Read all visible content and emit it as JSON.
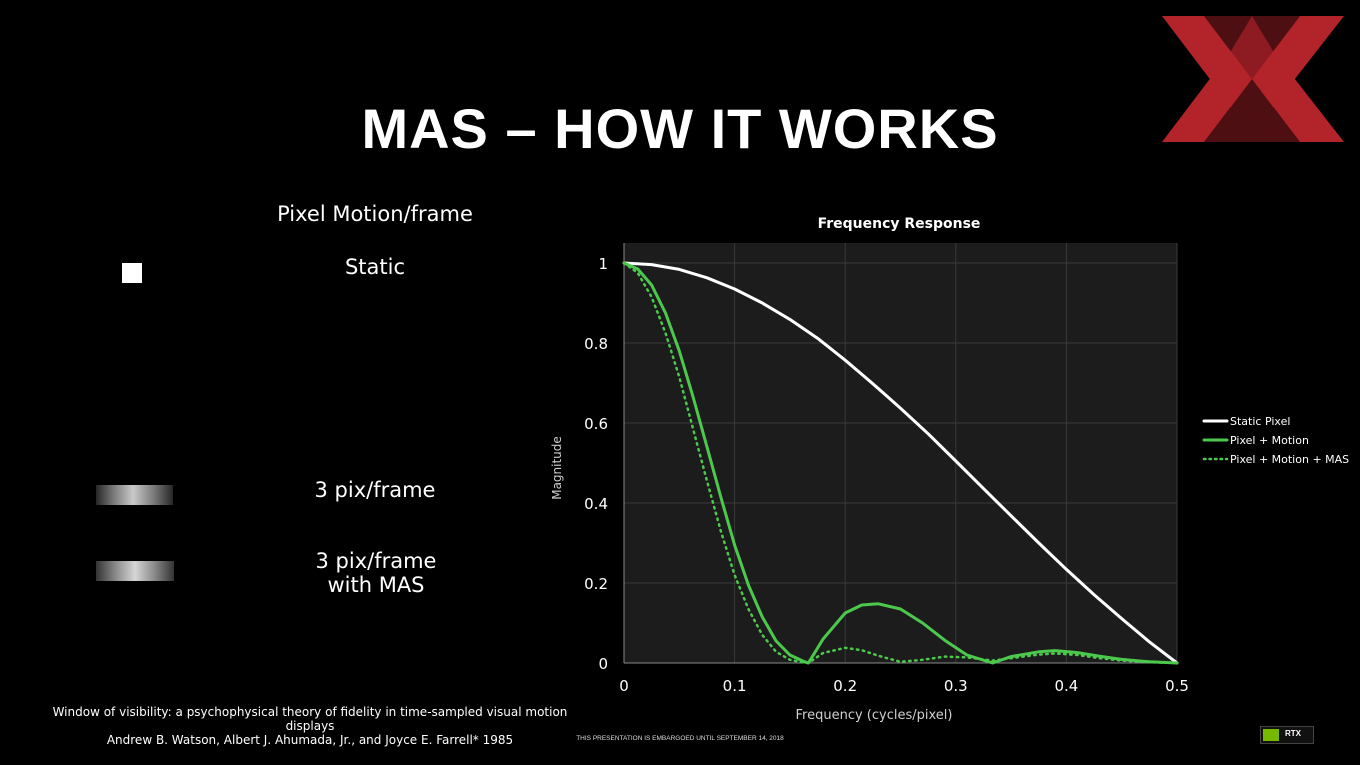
{
  "slide": {
    "title": "MAS – HOW IT WORKS",
    "motion_heading": "Pixel Motion/frame",
    "labels": {
      "static": "Static",
      "three_pix": "3 pix/frame",
      "three_pix_mas_line1": "3 pix/frame",
      "three_pix_mas_line2": "with MAS"
    },
    "citation": {
      "line1": "Window of visibility: a psychophysical theory of fidelity in time-sampled visual motion displays",
      "line2": "Andrew B. Watson, Albert J. Ahumada, Jr., and Joyce E. Farrell* 1985"
    },
    "embargo": "THIS PRESENTATION IS EMBARGOED UNTIL SEPTEMBER 14, 2018",
    "badge": {
      "text": "RTX",
      "icon": "nvidia-eye-icon"
    },
    "logo": {
      "icon": "red-xx-logo",
      "color": "#b3232a"
    }
  },
  "chart_data": {
    "type": "line",
    "title": "Frequency Response",
    "xlabel": "Frequency (cycles/pixel)",
    "ylabel": "Magnitude",
    "xlim": [
      0,
      0.5
    ],
    "ylim": [
      0,
      1.05
    ],
    "x_ticks": [
      0,
      0.1,
      0.2,
      0.3,
      0.4,
      0.5
    ],
    "x_tick_labels": [
      "0",
      "0.1",
      "0.2",
      "0.3",
      "0.4",
      "0.5"
    ],
    "y_ticks": [
      0,
      0.2,
      0.4,
      0.6,
      0.8,
      1
    ],
    "y_tick_labels": [
      "0",
      "0.2",
      "0.4",
      "0.6",
      "0.8",
      "1"
    ],
    "grid": true,
    "legend_position": "right",
    "series": [
      {
        "name": "Static Pixel",
        "color": "#ffffff",
        "style": "solid",
        "x": [
          0,
          0.025,
          0.05,
          0.075,
          0.1,
          0.125,
          0.15,
          0.175,
          0.2,
          0.225,
          0.25,
          0.275,
          0.3,
          0.325,
          0.35,
          0.375,
          0.4,
          0.425,
          0.45,
          0.475,
          0.5
        ],
        "y": [
          1.0,
          0.996,
          0.984,
          0.963,
          0.935,
          0.9,
          0.859,
          0.812,
          0.757,
          0.698,
          0.637,
          0.573,
          0.505,
          0.436,
          0.368,
          0.3,
          0.234,
          0.171,
          0.111,
          0.053,
          0.0
        ]
      },
      {
        "name": "Pixel + Motion",
        "color": "#4cc94c",
        "style": "solid",
        "x": [
          0,
          0.0125,
          0.025,
          0.0375,
          0.05,
          0.0625,
          0.075,
          0.0875,
          0.1,
          0.1125,
          0.125,
          0.1375,
          0.15,
          0.1625,
          0.1667,
          0.18,
          0.2,
          0.215,
          0.23,
          0.25,
          0.27,
          0.29,
          0.31,
          0.3333,
          0.35,
          0.375,
          0.39,
          0.41,
          0.43,
          0.45,
          0.475,
          0.5
        ],
        "y": [
          1.0,
          0.985,
          0.945,
          0.875,
          0.78,
          0.665,
          0.54,
          0.415,
          0.295,
          0.195,
          0.115,
          0.055,
          0.02,
          0.004,
          0.0,
          0.06,
          0.125,
          0.145,
          0.148,
          0.135,
          0.1,
          0.057,
          0.02,
          0.0,
          0.016,
          0.028,
          0.031,
          0.026,
          0.017,
          0.009,
          0.003,
          0.0
        ]
      },
      {
        "name": "Pixel + Motion + MAS",
        "color": "#4cc94c",
        "style": "dotted",
        "x": [
          0,
          0.0125,
          0.025,
          0.0375,
          0.05,
          0.0625,
          0.075,
          0.0875,
          0.1,
          0.1125,
          0.125,
          0.1375,
          0.15,
          0.1625,
          0.1667,
          0.18,
          0.2,
          0.215,
          0.23,
          0.25,
          0.27,
          0.29,
          0.31,
          0.3333,
          0.35,
          0.375,
          0.39,
          0.41,
          0.43,
          0.45,
          0.475,
          0.5
        ],
        "y": [
          1.0,
          0.975,
          0.915,
          0.825,
          0.715,
          0.585,
          0.455,
          0.33,
          0.22,
          0.135,
          0.07,
          0.028,
          0.008,
          0.001,
          0.0,
          0.025,
          0.038,
          0.032,
          0.018,
          0.003,
          0.008,
          0.016,
          0.014,
          0.006,
          0.012,
          0.021,
          0.024,
          0.02,
          0.012,
          0.006,
          0.002,
          0.0
        ]
      }
    ]
  }
}
